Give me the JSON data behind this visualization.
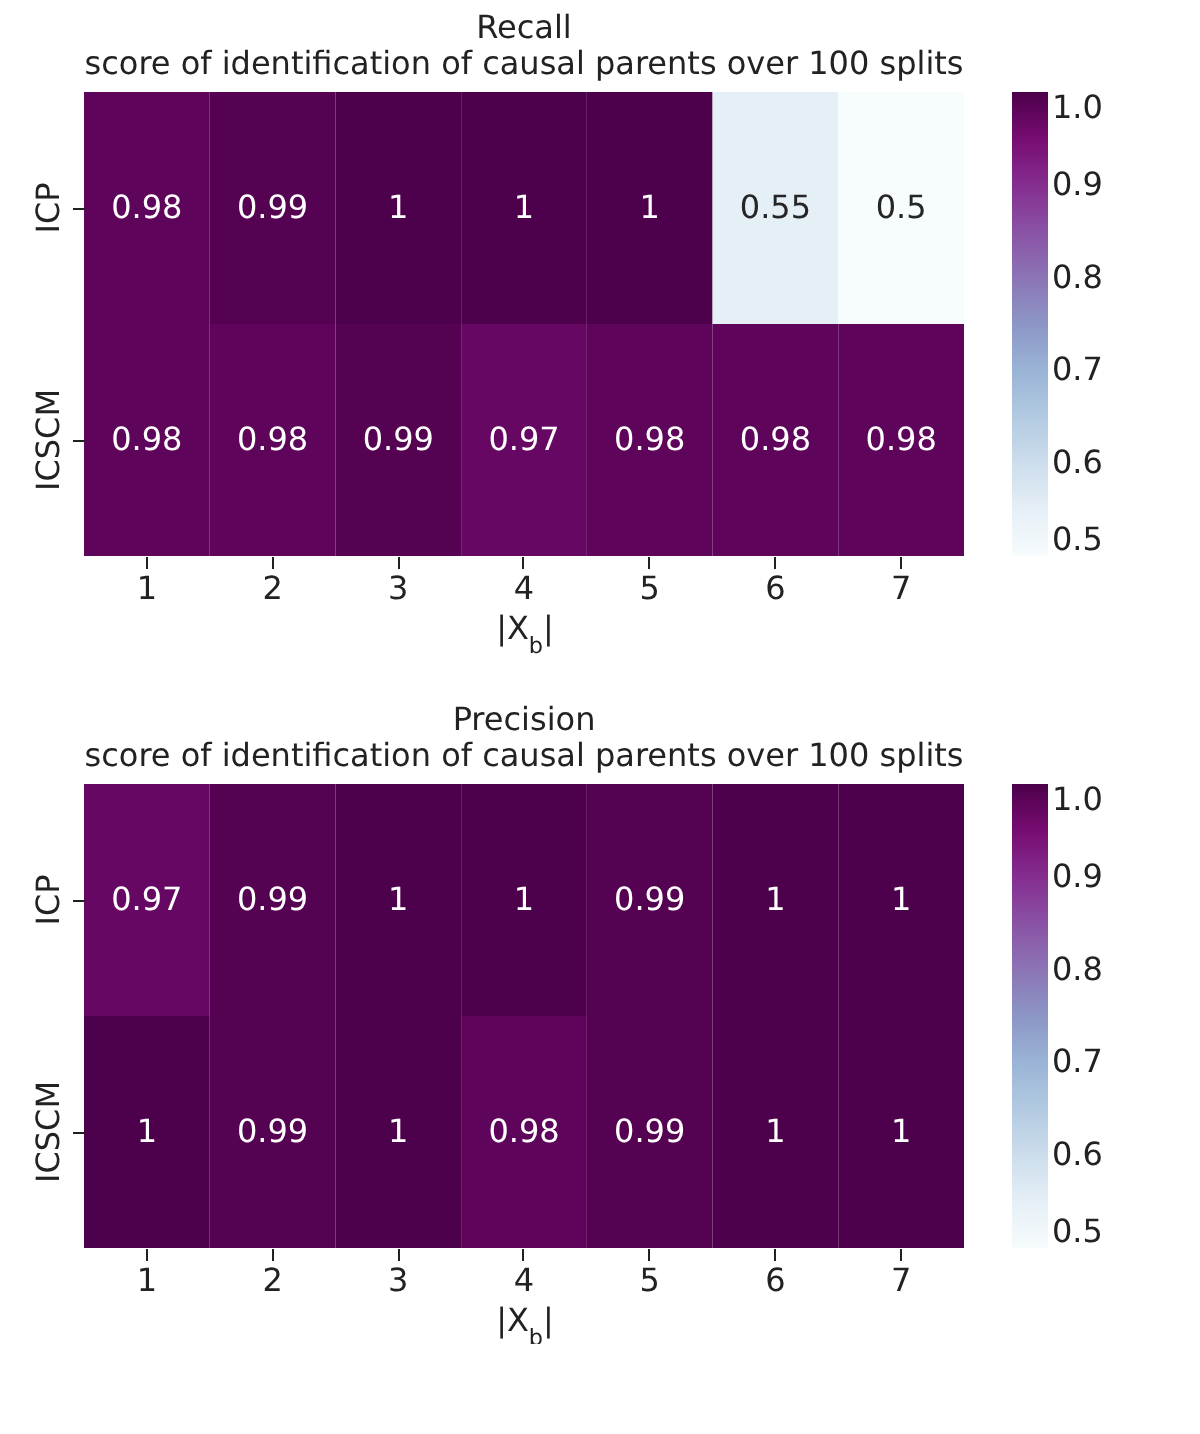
{
  "chart_data": [
    {
      "type": "heatmap",
      "title": "Recall",
      "subtitle": "score of identification of causal parents over 100 splits",
      "xlabel": "|X$_{b}$|",
      "categories": [
        "1",
        "2",
        "3",
        "4",
        "5",
        "6",
        "7"
      ],
      "y_categories": [
        "ICP",
        "ICSCM"
      ],
      "cells": [
        [
          0.98,
          0.99,
          1,
          1,
          1,
          0.55,
          0.5
        ],
        [
          0.98,
          0.98,
          0.99,
          0.97,
          0.98,
          0.98,
          0.98
        ]
      ],
      "data_labels": true,
      "clim": [
        0.5,
        1
      ],
      "cticks": [
        0.5,
        0.6,
        0.7,
        0.8,
        0.9,
        {
          "value": 1,
          "label": "1.0"
        }
      ]
    },
    {
      "type": "heatmap",
      "title": "Precision",
      "subtitle": "score of identification of causal parents over 100 splits",
      "xlabel": "|X$_{b}$|",
      "categories": [
        "1",
        "2",
        "3",
        "4",
        "5",
        "6",
        "7"
      ],
      "y_categories": [
        "ICP",
        "ICSCM"
      ],
      "cells": [
        [
          0.97,
          0.99,
          1,
          1,
          0.99,
          1,
          1
        ],
        [
          1,
          0.99,
          1,
          0.98,
          0.99,
          1,
          1
        ]
      ],
      "data_labels": true,
      "clim": [
        0.5,
        1
      ],
      "cticks": [
        0.5,
        0.6,
        0.7,
        0.8,
        0.9,
        {
          "value": 1,
          "label": "1.0"
        }
      ]
    }
  ]
}
